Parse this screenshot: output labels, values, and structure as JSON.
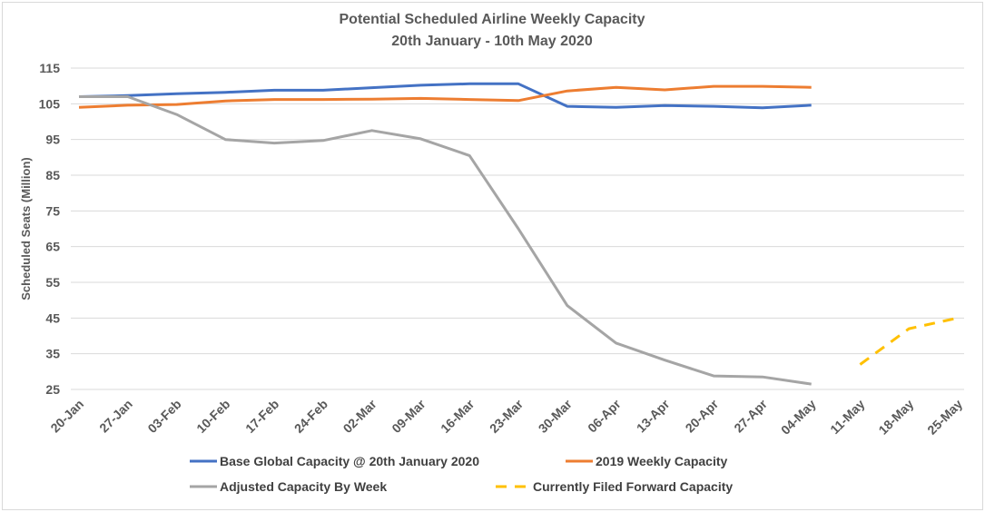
{
  "chart_data": {
    "type": "line",
    "title": "Potential Scheduled Airline Weekly Capacity",
    "subtitle": "20th January - 10th May 2020",
    "xlabel": "",
    "ylabel": "Scheduled Seats (Million)",
    "ylim": [
      25,
      115
    ],
    "yticks": [
      115,
      105,
      95,
      85,
      75,
      65,
      55,
      45,
      35,
      25
    ],
    "grid": true,
    "legend_position": "bottom",
    "categories": [
      "20-Jan",
      "27-Jan",
      "03-Feb",
      "10-Feb",
      "17-Feb",
      "24-Feb",
      "02-Mar",
      "09-Mar",
      "16-Mar",
      "23-Mar",
      "30-Mar",
      "06-Apr",
      "13-Apr",
      "20-Apr",
      "27-Apr",
      "04-May",
      "11-May",
      "18-May",
      "25-May"
    ],
    "series": [
      {
        "name": "Base Global Capacity @ 20th January 2020",
        "color": "#4472c4",
        "style": "solid",
        "values": [
          107.0,
          107.3,
          107.8,
          108.2,
          108.8,
          108.8,
          109.5,
          110.2,
          110.6,
          110.6,
          104.3,
          104.0,
          104.5,
          104.3,
          103.9,
          104.6,
          null,
          null,
          null
        ]
      },
      {
        "name": "2019 Weekly Capacity",
        "color": "#ed7d31",
        "style": "solid",
        "values": [
          104.0,
          104.6,
          104.8,
          105.8,
          106.2,
          106.2,
          106.3,
          106.5,
          106.2,
          105.9,
          108.6,
          109.6,
          108.9,
          109.9,
          109.9,
          109.6,
          null,
          null,
          null
        ]
      },
      {
        "name": "Adjusted Capacity By Week",
        "color": "#a5a5a5",
        "style": "solid",
        "values": [
          107.0,
          107.0,
          102.0,
          95.0,
          94.0,
          94.7,
          97.5,
          95.2,
          90.5,
          70.0,
          48.5,
          38.0,
          33.2,
          28.8,
          28.5,
          26.5,
          null,
          null,
          null
        ]
      },
      {
        "name": "Currently Filed Forward Capacity",
        "color": "#ffc000",
        "style": "dashed",
        "values": [
          null,
          null,
          null,
          null,
          null,
          null,
          null,
          null,
          null,
          null,
          null,
          null,
          null,
          null,
          null,
          null,
          32.0,
          42.0,
          45.0
        ]
      }
    ]
  }
}
